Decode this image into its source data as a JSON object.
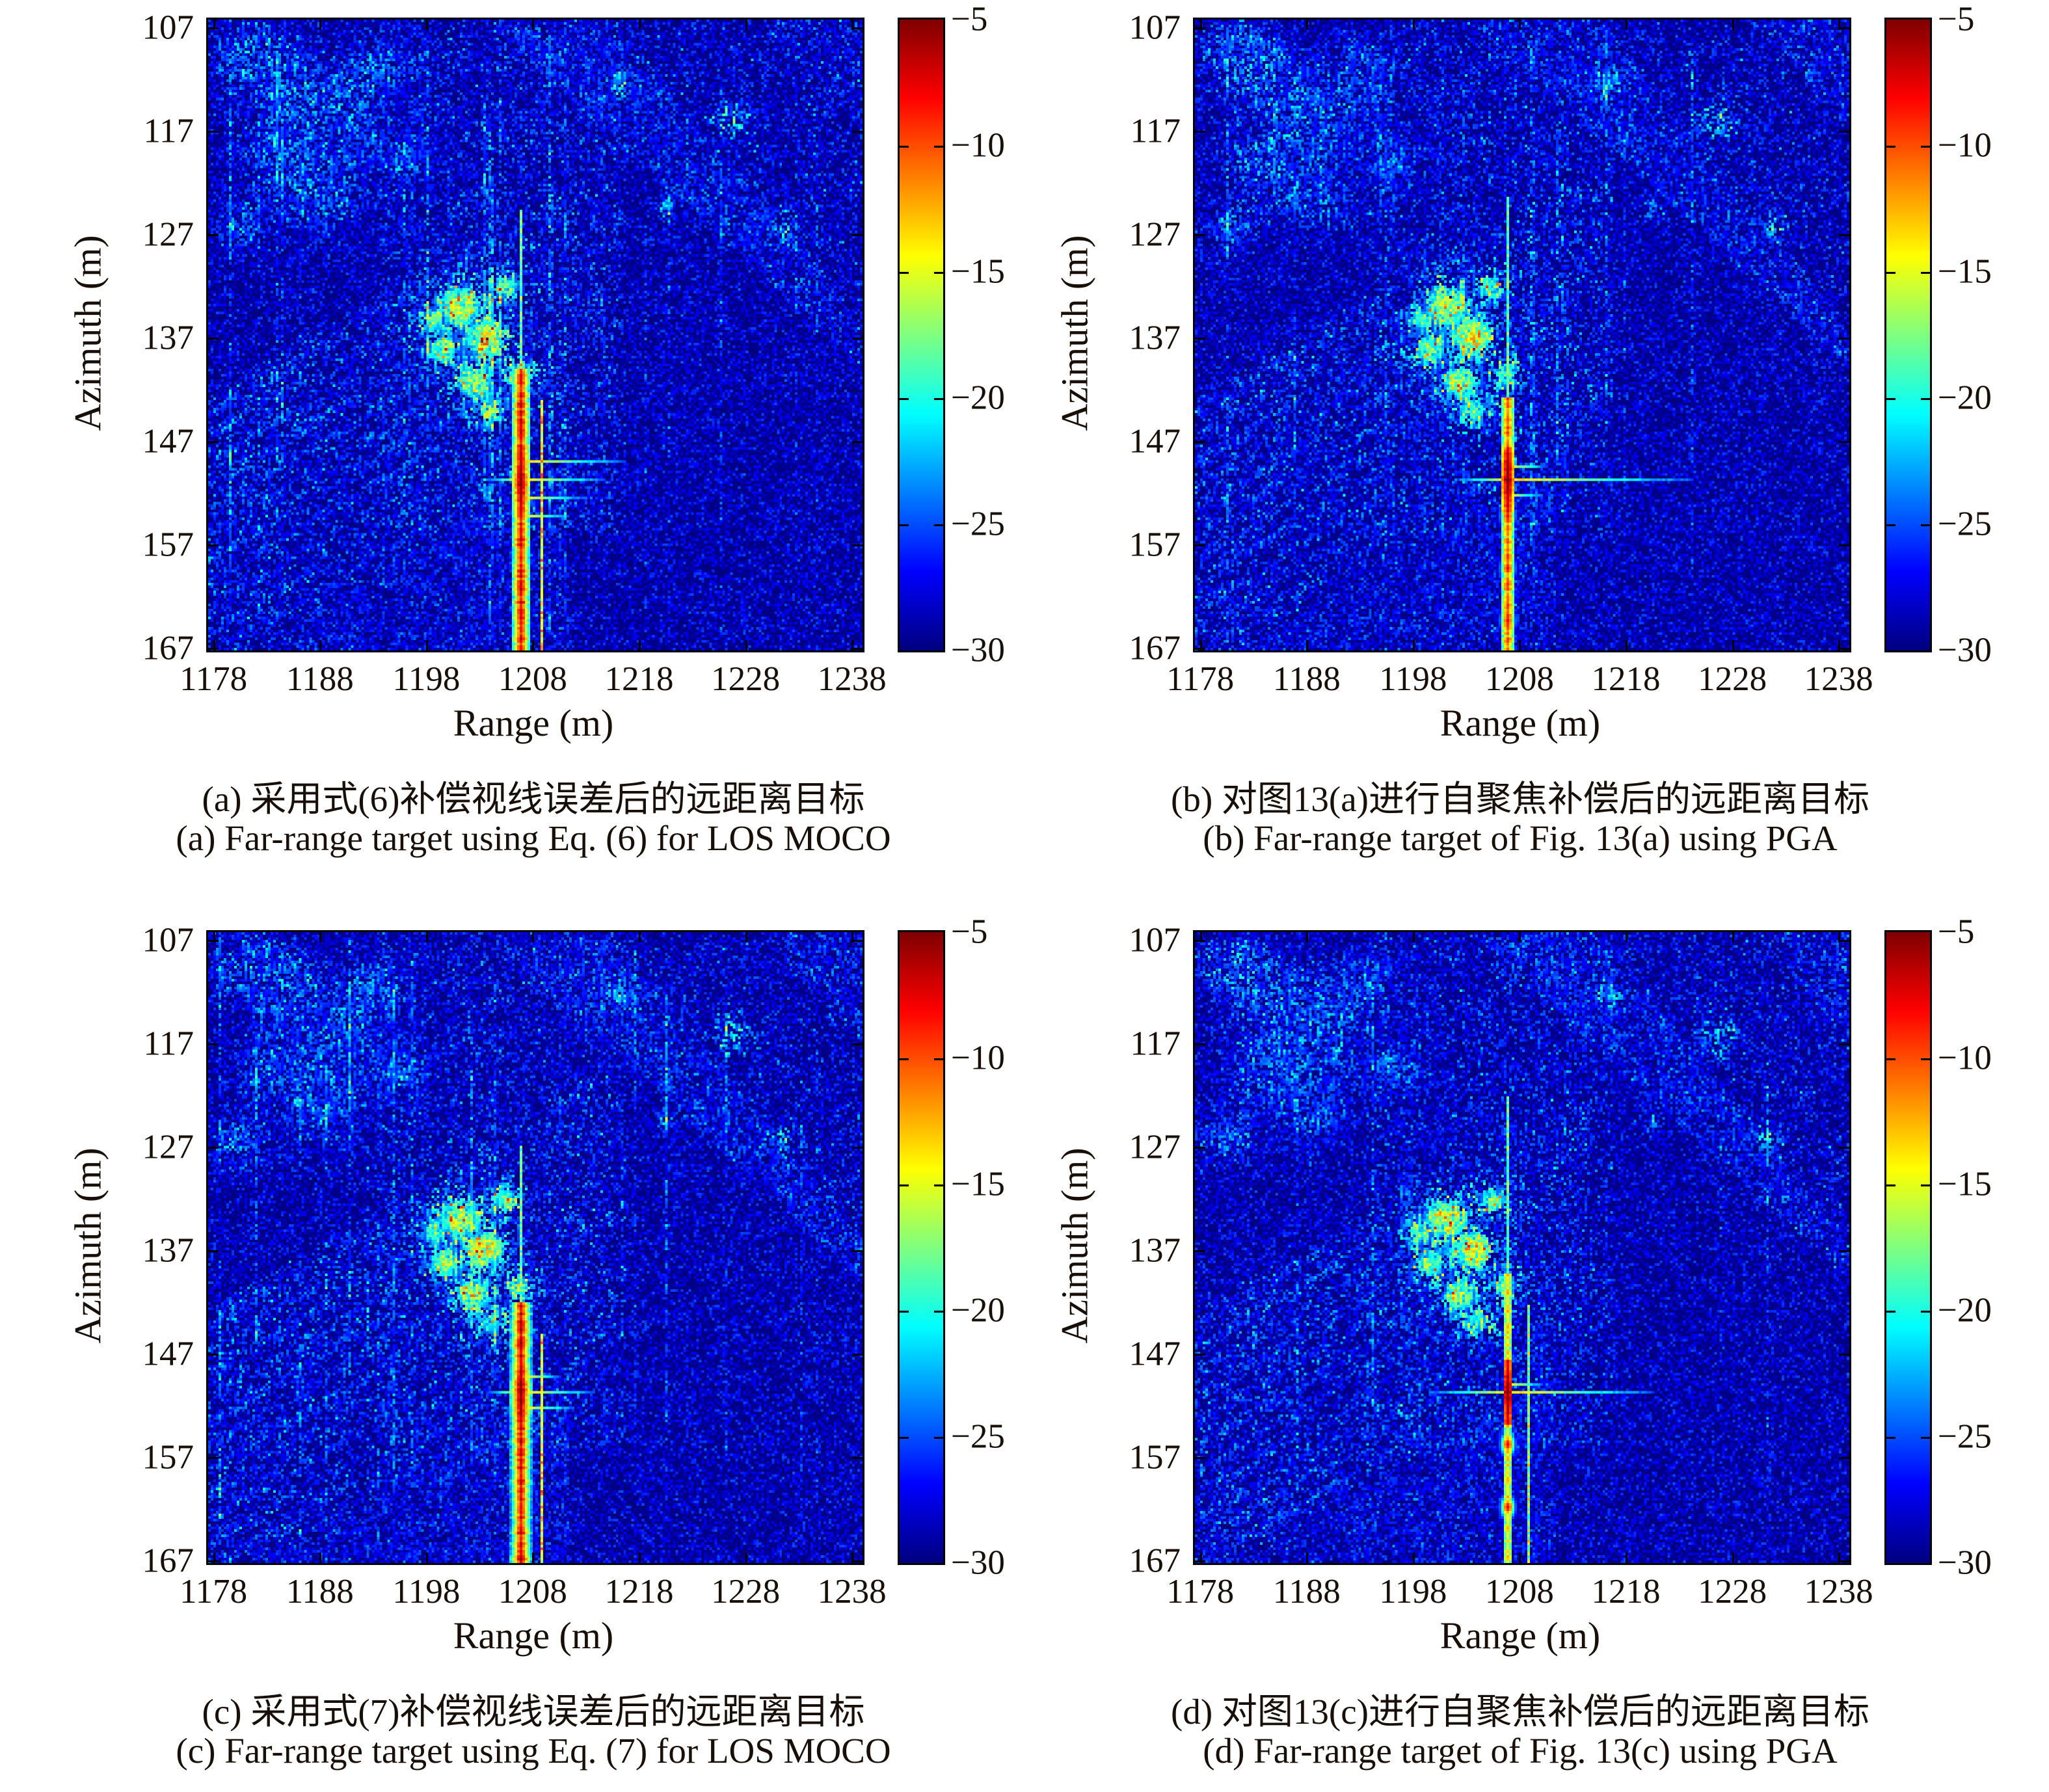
{
  "figure": {
    "background": "#ffffff",
    "text_color": "#181008",
    "grid": "off",
    "panels_layout": "2x2"
  },
  "colorbar": {
    "colormap": "jet",
    "min_db": -30,
    "max_db": -5,
    "ticks": [
      -5,
      -10,
      -15,
      -20,
      -25,
      -30
    ],
    "tick_labels": [
      "−5",
      "−10",
      "−15",
      "−20",
      "−25",
      "−30"
    ]
  },
  "chart_data": [
    {
      "type": "heatmap",
      "panel": "a",
      "caption_zh": "(a) 采用式(6)补偿视线误差后的远距离目标",
      "caption_en": "(a) Far-range target using Eq. (6) for LOS MOCO",
      "xlabel": "Range (m)",
      "ylabel": "Azimuth (m)",
      "x_ticks": [
        1178,
        1188,
        1198,
        1208,
        1218,
        1228,
        1238
      ],
      "x_tick_labels": [
        "1178",
        "1188",
        "1198",
        "1208",
        "1218",
        "1228",
        "1238"
      ],
      "y_ticks": [
        107,
        117,
        127,
        137,
        147,
        157,
        167
      ],
      "y_tick_labels": [
        "107",
        "117",
        "127",
        "137",
        "147",
        "157",
        "167"
      ],
      "x_range": [
        1177.5,
        1239.0
      ],
      "y_range": [
        106.2,
        167.2
      ],
      "value_range_db": [
        -30,
        -5
      ],
      "target": {
        "range_m": 1207,
        "azimuth_m": 150.5,
        "peak_db": -5
      },
      "appearance": "LOS MOCO only: point target strongly defocused in azimuth, long red vertical smear, many vertical clutter streaks",
      "render": {
        "seed": 11,
        "streaks": 26,
        "streakGain": 1.0,
        "smearTop": 0.555,
        "lineBase": -10,
        "haloW": 3,
        "upTop": 0.3,
        "secondLine": true,
        "dot": false,
        "armLeft": 0.05,
        "arms": [
          [
            -7,
            0.155
          ],
          [
            0,
            0.125
          ],
          [
            7,
            0.095
          ],
          [
            14,
            0.07
          ]
        ],
        "lineBlobs": [
          -30,
          -16,
          -6,
          12,
          30,
          52
        ]
      }
    },
    {
      "type": "heatmap",
      "panel": "b",
      "caption_zh": "(b) 对图13(a)进行自聚焦补偿后的远距离目标",
      "caption_en": "(b) Far-range target of Fig. 13(a) using PGA",
      "xlabel": "Range (m)",
      "ylabel": "Azimuth (m)",
      "x_ticks": [
        1178,
        1188,
        1198,
        1208,
        1218,
        1228,
        1238
      ],
      "x_tick_labels": [
        "1178",
        "1188",
        "1198",
        "1208",
        "1218",
        "1228",
        "1238"
      ],
      "y_ticks": [
        107,
        117,
        127,
        137,
        147,
        157,
        167
      ],
      "y_tick_labels": [
        "107",
        "117",
        "127",
        "137",
        "147",
        "157",
        "167"
      ],
      "x_range": [
        1177.5,
        1239.0
      ],
      "y_range": [
        106.2,
        167.2
      ],
      "value_range_db": [
        -30,
        -5
      ],
      "target": {
        "range_m": 1207,
        "azimuth_m": 150.5,
        "peak_db": -5
      },
      "appearance": "After PGA: compact red point target with cross-shaped sidelobes, residual vertical line, fewer streaks",
      "render": {
        "seed": 23,
        "streaks": 13,
        "streakGain": 0.8,
        "smearTop": 0.6,
        "lineBase": -13,
        "haloW": 2,
        "upTop": 0.28,
        "secondLine": false,
        "dot": true,
        "armLeft": 0.08,
        "arms": [
          [
            0,
            0.28
          ],
          [
            -5,
            0.06
          ],
          [
            6,
            0.05
          ]
        ],
        "lineBlobs": [
          14,
          34,
          54
        ]
      }
    },
    {
      "type": "heatmap",
      "panel": "c",
      "caption_zh": "(c) 采用式(7)补偿视线误差后的远距离目标",
      "caption_en": "(c) Far-range target using Eq. (7) for LOS MOCO",
      "xlabel": "Range (m)",
      "ylabel": "Azimuth (m)",
      "x_ticks": [
        1178,
        1188,
        1198,
        1208,
        1218,
        1228,
        1238
      ],
      "x_tick_labels": [
        "1178",
        "1188",
        "1198",
        "1208",
        "1218",
        "1228",
        "1238"
      ],
      "y_ticks": [
        107,
        117,
        127,
        137,
        147,
        157,
        167
      ],
      "y_tick_labels": [
        "107",
        "117",
        "127",
        "137",
        "147",
        "157",
        "167"
      ],
      "x_range": [
        1177.5,
        1239.0
      ],
      "y_range": [
        106.2,
        167.2
      ],
      "value_range_db": [
        -30,
        -5
      ],
      "target": {
        "range_m": 1207,
        "azimuth_m": 150.5,
        "peak_db": -5
      },
      "appearance": "LOS MOCO only: target defocused into bright vertical smear with yellow halo, moderate vertical streaks",
      "render": {
        "seed": 37,
        "streaks": 20,
        "streakGain": 1.0,
        "smearTop": 0.585,
        "lineBase": -9.5,
        "haloW": 4,
        "upTop": 0.34,
        "secondLine": true,
        "dot": false,
        "armLeft": 0.05,
        "arms": [
          [
            0,
            0.11
          ],
          [
            6,
            0.08
          ],
          [
            -6,
            0.06
          ]
        ],
        "lineBlobs": [
          -12,
          8,
          26,
          44
        ]
      }
    },
    {
      "type": "heatmap",
      "panel": "d",
      "caption_zh": "(d) 对图13(c)进行自聚焦补偿后的远距离目标",
      "caption_en": "(d) Far-range target of Fig. 13(c) using PGA",
      "xlabel": "Range (m)",
      "ylabel": "Azimuth (m)",
      "x_ticks": [
        1178,
        1188,
        1198,
        1208,
        1218,
        1228,
        1238
      ],
      "x_tick_labels": [
        "1178",
        "1188",
        "1198",
        "1208",
        "1218",
        "1228",
        "1238"
      ],
      "y_ticks": [
        107,
        117,
        127,
        137,
        147,
        157,
        167
      ],
      "y_tick_labels": [
        "107",
        "117",
        "127",
        "137",
        "147",
        "157",
        "167"
      ],
      "x_range": [
        1177.5,
        1239.0
      ],
      "y_range": [
        106.2,
        167.2
      ],
      "value_range_db": [
        -30,
        -5
      ],
      "target": {
        "range_m": 1207,
        "azimuth_m": 150.5,
        "peak_db": -5
      },
      "appearance": "After PGA: well focused compact red point target, thin cross sidelobes, cleanest background",
      "render": {
        "seed": 51,
        "streaks": 9,
        "streakGain": 0.7,
        "smearTop": 0.54,
        "lineBase": -16,
        "haloW": 1,
        "upTop": 0.26,
        "secondLine": true,
        "dot": true,
        "armLeft": 0.12,
        "arms": [
          [
            0,
            0.22
          ],
          [
            -3,
            0.05
          ]
        ],
        "lineBlobs": [
          20,
          44
        ]
      }
    }
  ]
}
